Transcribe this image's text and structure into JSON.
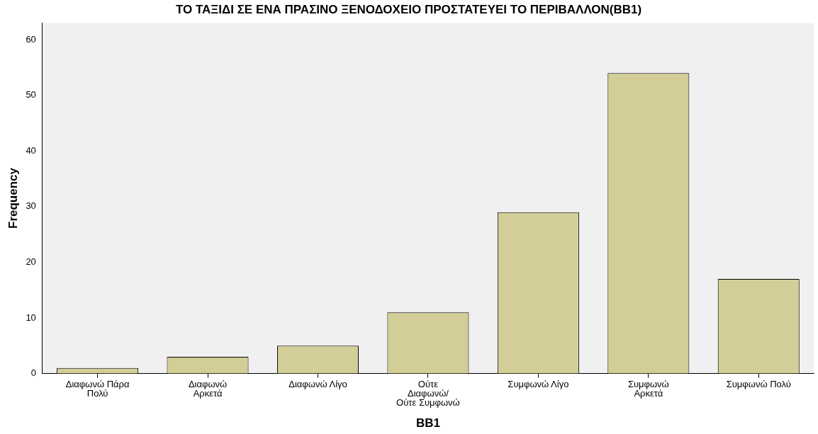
{
  "chart_data": {
    "type": "bar",
    "title": "ΤΟ ΤΑΞΙΔΙ ΣΕ ΕΝΑ ΠΡΑΣΙΝΟ ΞΕΝΟΔΟΧΕΙΟ ΠΡΟΣΤΑΤΕΥΕΙ ΤΟ ΠΕΡΙΒΑΛΛΟΝ(BB1)",
    "xlabel": "BB1",
    "ylabel": "Frequency",
    "categories": [
      "Διαφωνώ Πάρα Πολύ",
      "Διαφωνώ Αρκετά",
      "Διαφωνώ Λίγο",
      "Ούτε Διαφωνώ/ Ούτε Συμφωνώ",
      "Συμφωνώ Λίγο",
      "Συμφωνώ Αρκετά",
      "Συμφωνώ Πολύ"
    ],
    "values": [
      1,
      3,
      5,
      11,
      29,
      54,
      17
    ],
    "color": "#d3ce97",
    "ylim": [
      0,
      63
    ],
    "yticks": [
      0,
      10,
      20,
      30,
      40,
      50,
      60
    ],
    "grid": false,
    "legend": false
  }
}
